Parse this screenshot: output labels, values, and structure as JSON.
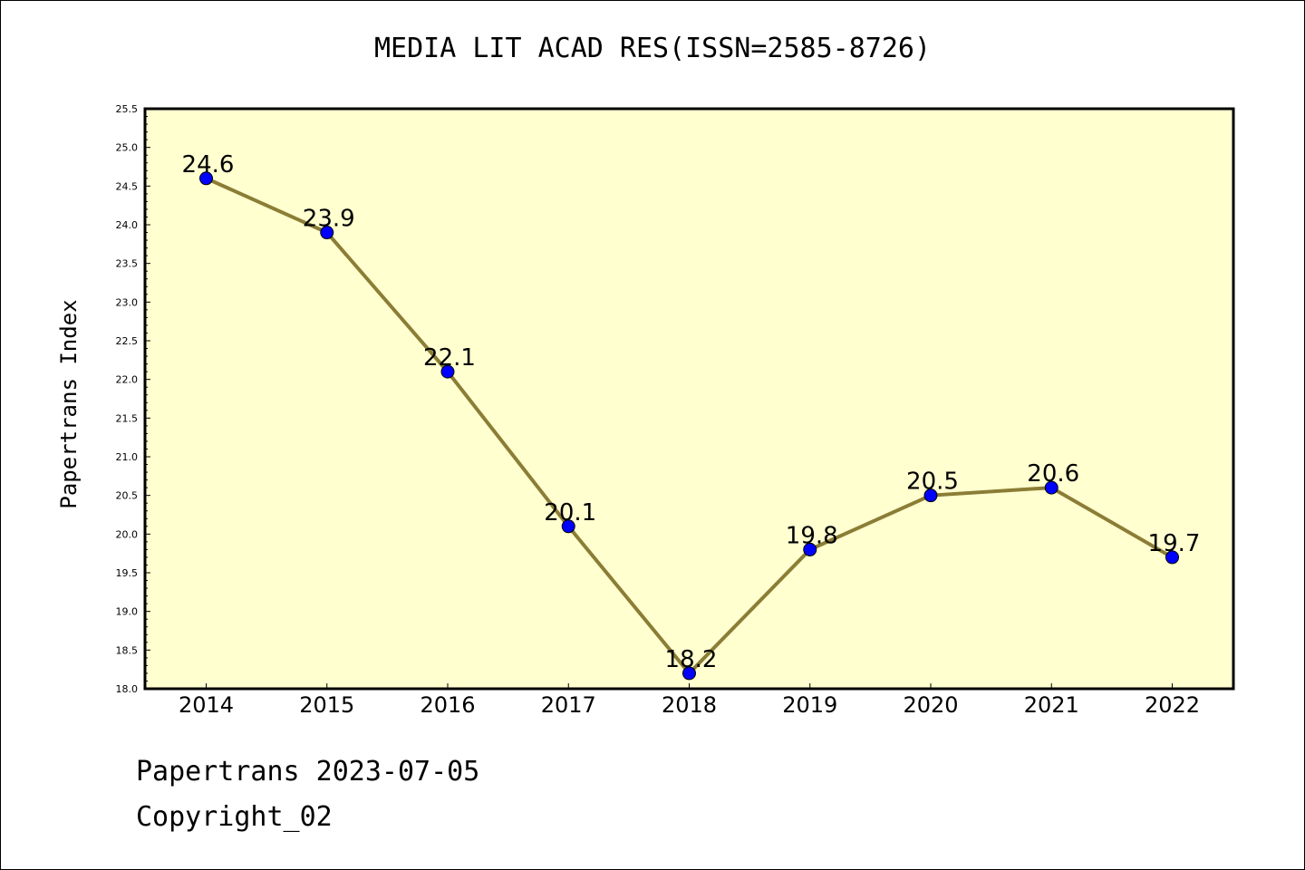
{
  "chart_data": {
    "type": "line",
    "title": "MEDIA LIT ACAD RES(ISSN=2585-8726)",
    "xlabel": "",
    "ylabel": "Papertrans Index",
    "categories": [
      "2014",
      "2015",
      "2016",
      "2017",
      "2018",
      "2019",
      "2020",
      "2021",
      "2022"
    ],
    "series": [
      {
        "values": [
          24.6,
          23.9,
          22.1,
          20.1,
          18.2,
          19.8,
          20.5,
          20.6,
          19.7
        ]
      }
    ],
    "data_labels": [
      "24.6",
      "23.9",
      "22.1",
      "20.1",
      "18.2",
      "19.8",
      "20.5",
      "20.6",
      "19.7"
    ],
    "ylim": [
      18.0,
      25.5
    ],
    "yticks": [
      "18.0",
      "18.5",
      "19.0",
      "19.5",
      "20.0",
      "20.5",
      "21.0",
      "21.5",
      "22.0",
      "22.5",
      "23.0",
      "23.5",
      "24.0",
      "24.5",
      "25.0",
      "25.5"
    ],
    "grid": false,
    "colors": {
      "plot_bg": "#ffffd0",
      "line": "#8b7d35",
      "marker": "#0000ff"
    }
  },
  "footer": {
    "line1": "Papertrans 2023-07-05",
    "line2": "Copyright_02"
  }
}
